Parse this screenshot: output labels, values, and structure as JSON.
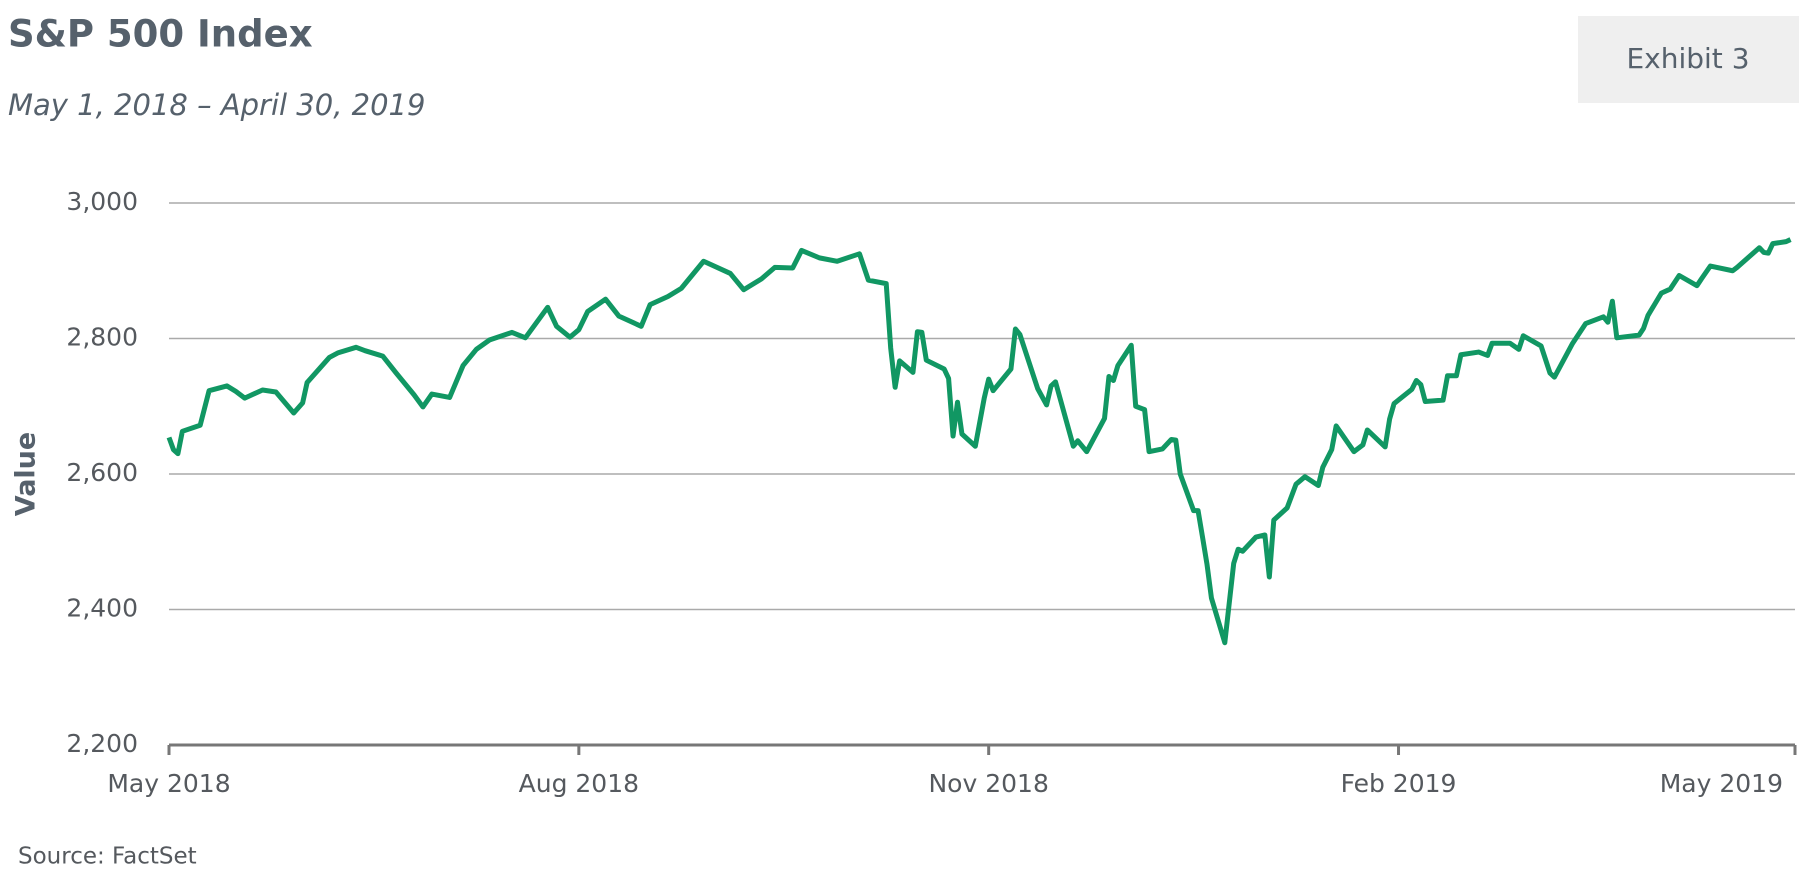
{
  "chart_data": {
    "type": "line",
    "title": "S&P 500 Index",
    "subtitle": "May 1, 2018 – April 30, 2019",
    "badge": "Exhibit 3",
    "y_label": "Value",
    "source": "Source: FactSet",
    "grid": true,
    "xlim": [
      "2018-05-01",
      "2019-05-01"
    ],
    "xticks": [
      {
        "value": "2018-05-01",
        "label": "May 2018"
      },
      {
        "value": "2018-08-01",
        "label": "Aug 2018"
      },
      {
        "value": "2018-11-01",
        "label": "Nov 2018"
      },
      {
        "value": "2019-02-01",
        "label": "Feb 2019"
      },
      {
        "value": "2019-05-01",
        "label": "May 2019"
      }
    ],
    "ylim": [
      2200,
      3000
    ],
    "yticks": [
      {
        "value": 2200,
        "label": "2,200"
      },
      {
        "value": 2400,
        "label": "2,400"
      },
      {
        "value": 2600,
        "label": "2,600"
      },
      {
        "value": 2800,
        "label": "2,800"
      },
      {
        "value": 3000,
        "label": "3,000"
      }
    ],
    "x": [
      "2018-05-01",
      "2018-05-02",
      "2018-05-03",
      "2018-05-04",
      "2018-05-08",
      "2018-05-10",
      "2018-05-14",
      "2018-05-16",
      "2018-05-18",
      "2018-05-22",
      "2018-05-25",
      "2018-05-29",
      "2018-05-31",
      "2018-06-01",
      "2018-06-06",
      "2018-06-08",
      "2018-06-12",
      "2018-06-14",
      "2018-06-18",
      "2018-06-21",
      "2018-06-25",
      "2018-06-27",
      "2018-06-29",
      "2018-07-03",
      "2018-07-06",
      "2018-07-09",
      "2018-07-12",
      "2018-07-17",
      "2018-07-20",
      "2018-07-25",
      "2018-07-27",
      "2018-07-30",
      "2018-08-01",
      "2018-08-03",
      "2018-08-07",
      "2018-08-10",
      "2018-08-15",
      "2018-08-17",
      "2018-08-21",
      "2018-08-24",
      "2018-08-29",
      "2018-09-04",
      "2018-09-07",
      "2018-09-11",
      "2018-09-14",
      "2018-09-18",
      "2018-09-20",
      "2018-09-24",
      "2018-09-28",
      "2018-10-03",
      "2018-10-05",
      "2018-10-09",
      "2018-10-10",
      "2018-10-11",
      "2018-10-12",
      "2018-10-15",
      "2018-10-16",
      "2018-10-17",
      "2018-10-18",
      "2018-10-22",
      "2018-10-23",
      "2018-10-24",
      "2018-10-25",
      "2018-10-26",
      "2018-10-29",
      "2018-10-31",
      "2018-11-01",
      "2018-11-02",
      "2018-11-06",
      "2018-11-07",
      "2018-11-08",
      "2018-11-12",
      "2018-11-14",
      "2018-11-15",
      "2018-11-16",
      "2018-11-20",
      "2018-11-21",
      "2018-11-23",
      "2018-11-27",
      "2018-11-28",
      "2018-11-29",
      "2018-11-30",
      "2018-12-03",
      "2018-12-04",
      "2018-12-06",
      "2018-12-07",
      "2018-12-10",
      "2018-12-12",
      "2018-12-13",
      "2018-12-14",
      "2018-12-17",
      "2018-12-18",
      "2018-12-19",
      "2018-12-20",
      "2018-12-21",
      "2018-12-24",
      "2018-12-26",
      "2018-12-27",
      "2018-12-28",
      "2018-12-31",
      "2019-01-02",
      "2019-01-03",
      "2019-01-04",
      "2019-01-07",
      "2019-01-09",
      "2019-01-11",
      "2019-01-14",
      "2019-01-15",
      "2019-01-17",
      "2019-01-18",
      "2019-01-22",
      "2019-01-24",
      "2019-01-25",
      "2019-01-29",
      "2019-01-30",
      "2019-01-31",
      "2019-02-04",
      "2019-02-05",
      "2019-02-06",
      "2019-02-07",
      "2019-02-11",
      "2019-02-12",
      "2019-02-14",
      "2019-02-15",
      "2019-02-19",
      "2019-02-21",
      "2019-02-22",
      "2019-02-26",
      "2019-02-28",
      "2019-03-01",
      "2019-03-05",
      "2019-03-07",
      "2019-03-08",
      "2019-03-12",
      "2019-03-15",
      "2019-03-19",
      "2019-03-20",
      "2019-03-21",
      "2019-03-22",
      "2019-03-27",
      "2019-03-28",
      "2019-03-29",
      "2019-04-01",
      "2019-04-03",
      "2019-04-05",
      "2019-04-09",
      "2019-04-10",
      "2019-04-12",
      "2019-04-17",
      "2019-04-18",
      "2019-04-23",
      "2019-04-24",
      "2019-04-25",
      "2019-04-26",
      "2019-04-29",
      "2019-04-30"
    ],
    "series": [
      {
        "color": "#119763",
        "values": [
          2654,
          2636,
          2630,
          2663,
          2672,
          2723,
          2730,
          2722,
          2712,
          2724,
          2721,
          2690,
          2705,
          2735,
          2772,
          2779,
          2787,
          2782,
          2774,
          2749,
          2717,
          2699,
          2718,
          2713,
          2760,
          2784,
          2798,
          2809,
          2801,
          2846,
          2818,
          2802,
          2813,
          2840,
          2858,
          2833,
          2818,
          2850,
          2862,
          2874,
          2914,
          2896,
          2872,
          2888,
          2905,
          2904,
          2930,
          2919,
          2914,
          2925,
          2886,
          2881,
          2786,
          2728,
          2767,
          2750,
          2810,
          2809,
          2768,
          2755,
          2741,
          2656,
          2706,
          2659,
          2641,
          2712,
          2740,
          2723,
          2755,
          2814,
          2806,
          2726,
          2702,
          2730,
          2736,
          2641,
          2649,
          2633,
          2682,
          2744,
          2738,
          2760,
          2790,
          2700,
          2695,
          2633,
          2637,
          2651,
          2650,
          2600,
          2546,
          2546,
          2507,
          2467,
          2417,
          2351,
          2468,
          2489,
          2486,
          2507,
          2510,
          2448,
          2532,
          2550,
          2585,
          2596,
          2583,
          2610,
          2636,
          2671,
          2633,
          2643,
          2665,
          2640,
          2681,
          2704,
          2725,
          2738,
          2732,
          2707,
          2709,
          2745,
          2745,
          2776,
          2780,
          2775,
          2793,
          2793,
          2784,
          2804,
          2789,
          2749,
          2743,
          2792,
          2822,
          2832,
          2824,
          2855,
          2801,
          2805,
          2815,
          2834,
          2867,
          2873,
          2893,
          2878,
          2888,
          2907,
          2900,
          2905,
          2934,
          2927,
          2926,
          2940,
          2943,
          2946
        ]
      }
    ]
  }
}
